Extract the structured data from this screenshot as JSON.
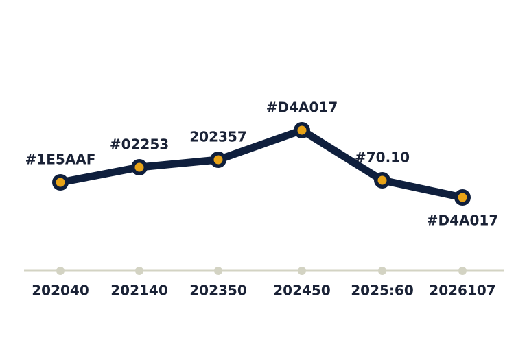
{
  "chart_data": {
    "type": "line",
    "categories": [
      "202040",
      "202140",
      "202350",
      "202450",
      "2025:60",
      "2026107"
    ],
    "values": [
      134,
      156,
      167,
      210,
      137,
      112
    ],
    "point_labels": [
      "#1E5AAF",
      "#02253",
      "202357",
      "#D4A017",
      "#70.10",
      "#D4A017"
    ],
    "color": "#0f1f3d",
    "marker_color": "#e8a317",
    "axis_color": "#d3d3c3"
  }
}
